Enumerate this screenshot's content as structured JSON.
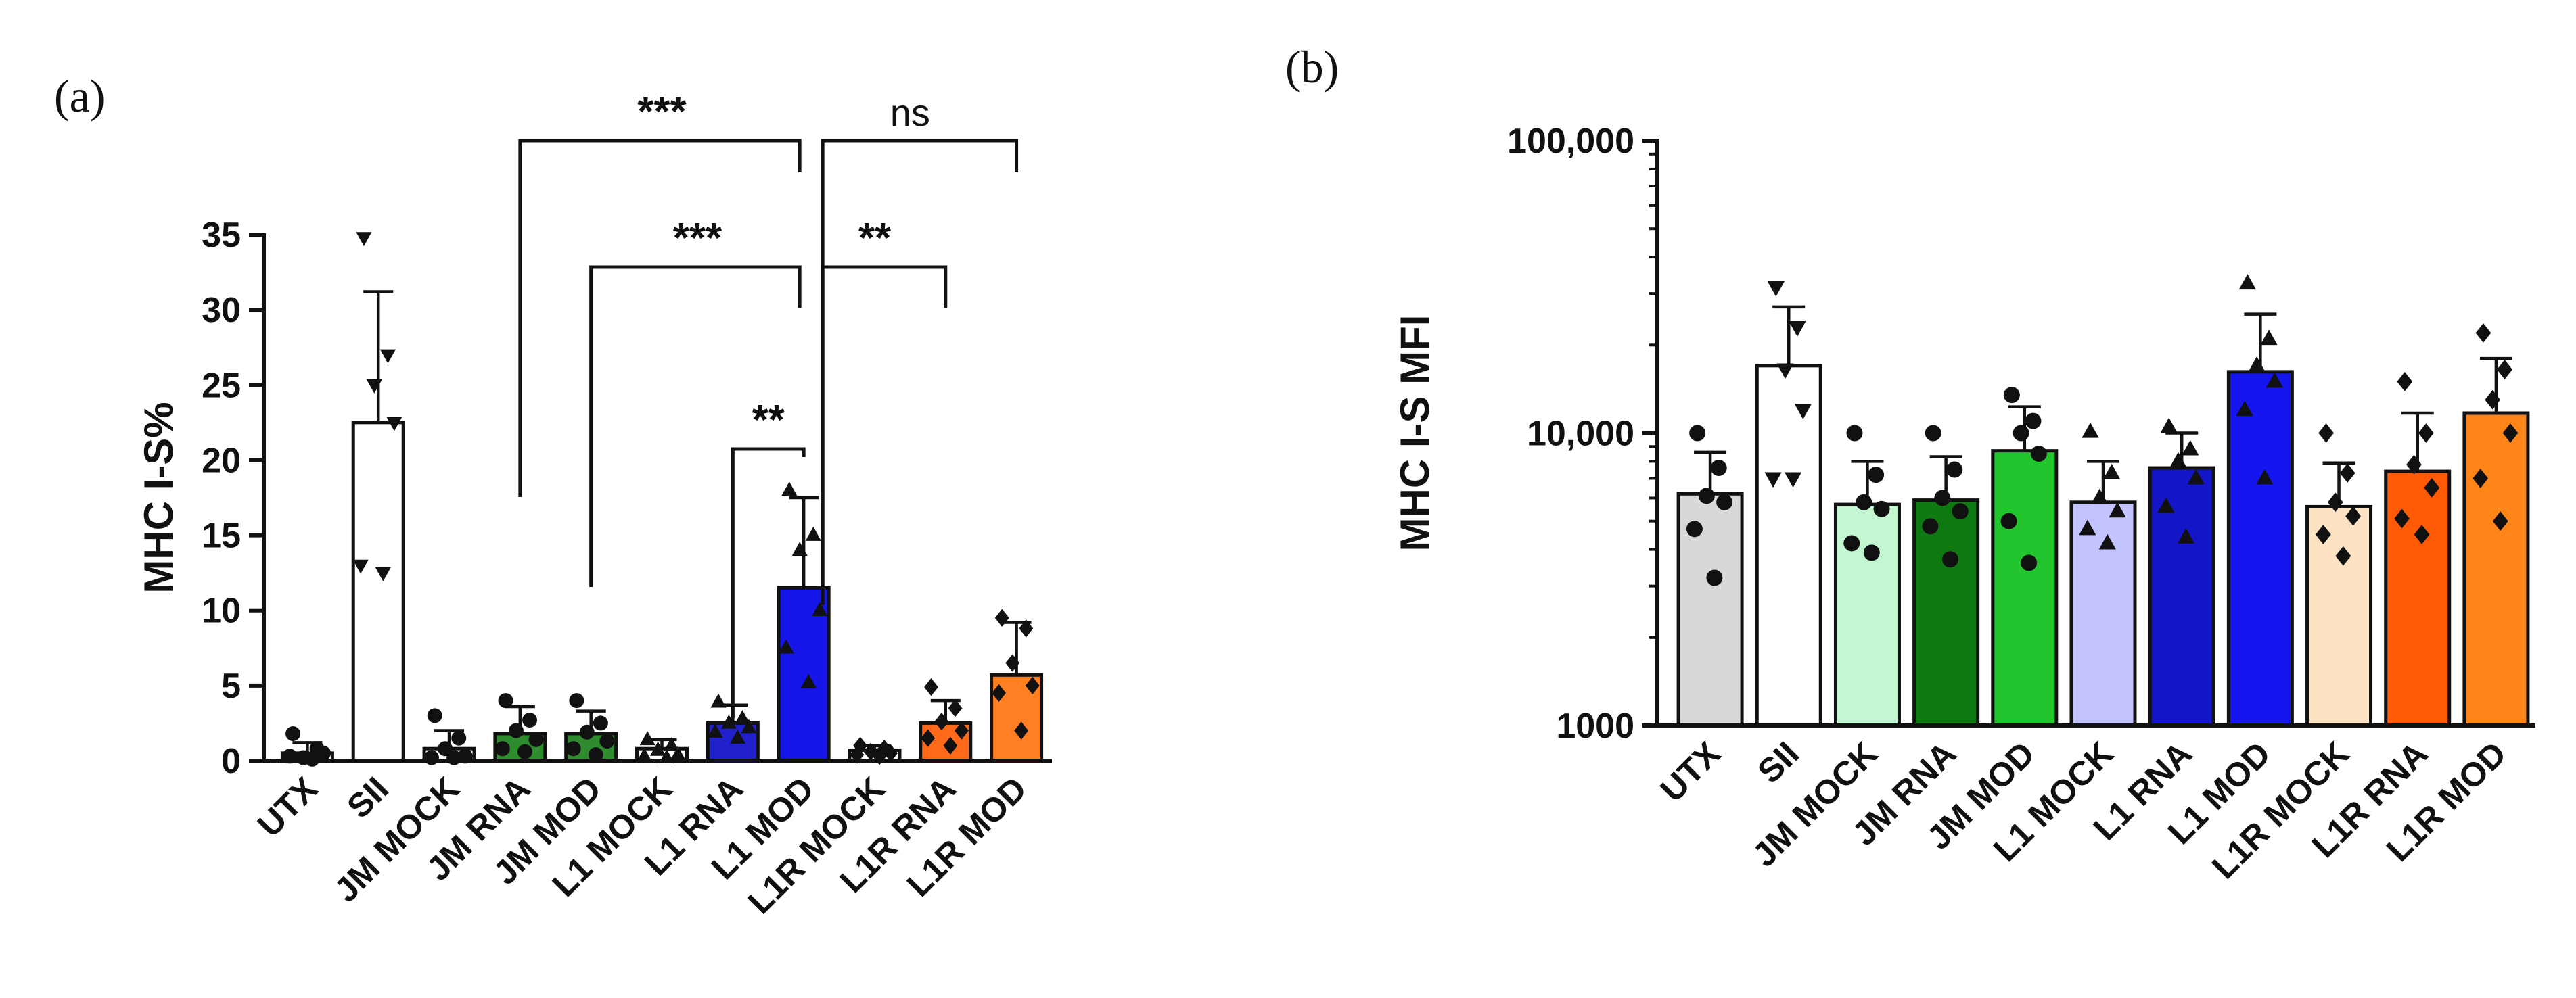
{
  "chart_data": [
    {
      "panel": "(a)",
      "type": "bar",
      "ylabel": "MHC I-S%",
      "scale": "linear",
      "ylim": [
        0,
        35
      ],
      "yticks": [
        0,
        5,
        10,
        15,
        20,
        25,
        30,
        35
      ],
      "ytick_labels": [
        "0",
        "5",
        "10",
        "15",
        "20",
        "25",
        "30",
        "35"
      ],
      "categories": [
        "UTX",
        "SII",
        "JM MOCK",
        "JM RNA",
        "JM MOD",
        "L1 MOCK",
        "L1 RNA",
        "L1 MOD",
        "L1R MOCK",
        "L1R RNA",
        "L1R MOD"
      ],
      "values": [
        0.5,
        22.5,
        0.8,
        1.8,
        1.8,
        0.8,
        2.5,
        11.5,
        0.7,
        2.5,
        5.7
      ],
      "errors": [
        0.7,
        8.7,
        1.2,
        1.8,
        1.5,
        0.6,
        1.2,
        6.0,
        0.3,
        1.5,
        3.5
      ],
      "colors": [
        "#ffffff",
        "#ffffff",
        "#ffffff",
        "#2e8b2e",
        "#2e8b2e",
        "#ffffff",
        "#2020cc",
        "#1515e8",
        "#ffffff",
        "#ff6a1a",
        "#ff7f22"
      ],
      "markers": [
        "circle",
        "triangle-down",
        "circle",
        "circle",
        "circle",
        "triangle",
        "triangle",
        "triangle",
        "diamond",
        "diamond",
        "diamond"
      ],
      "points": [
        [
          1.8,
          0.8,
          0.2,
          0.5,
          0.3,
          0.1
        ],
        [
          34.8,
          27,
          25,
          22.5,
          13,
          12.5
        ],
        [
          3,
          1.5,
          0.8,
          0.3,
          0.2,
          0.2
        ],
        [
          4,
          2.7,
          2.0,
          1.4,
          0.8,
          0.6
        ],
        [
          4,
          2.5,
          1.9,
          1.3,
          0.8,
          0.4
        ],
        [
          1.4,
          1.0,
          0.7,
          0.4,
          0.3,
          0.2
        ],
        [
          3.9,
          2.8,
          2.5,
          2.2,
          1.9,
          1.5
        ],
        [
          18,
          15,
          14,
          10,
          7.5,
          5.2
        ],
        [
          1.0,
          0.8,
          0.6,
          0.5,
          0.4,
          0.3
        ],
        [
          4.9,
          3.5,
          2.6,
          2.0,
          1.5,
          1.0
        ],
        [
          9.5,
          8.8,
          6.5,
          5.0,
          4.5,
          2.0
        ]
      ],
      "significance": [
        {
          "from": "JM RNA",
          "to": "L1 MOD",
          "label": "***"
        },
        {
          "from": "L1 MOD",
          "to": "L1R MOD",
          "label": "ns"
        },
        {
          "from": "JM MOD",
          "to": "L1 MOD",
          "label": "***"
        },
        {
          "from": "L1 MOD",
          "to": "L1R RNA",
          "label": "**"
        },
        {
          "from": "L1 RNA",
          "to": "L1 MOD",
          "label": "**"
        }
      ]
    },
    {
      "panel": "(b)",
      "type": "bar",
      "ylabel": "MHC I-S MFI",
      "scale": "log",
      "ylim": [
        1000,
        100000
      ],
      "yticks": [
        1000,
        10000,
        100000
      ],
      "ytick_labels": [
        "1000",
        "10,000",
        "100,000"
      ],
      "categories": [
        "UTX",
        "SII",
        "JM MOCK",
        "JM RNA",
        "JM MOD",
        "L1 MOCK",
        "L1 RNA",
        "L1 MOD",
        "L1R MOCK",
        "L1R RNA",
        "L1R MOD"
      ],
      "values": [
        6200,
        17000,
        5700,
        5900,
        8700,
        5800,
        7600,
        16200,
        5600,
        7400,
        11700
      ],
      "errors_upper": [
        8600,
        27000,
        8000,
        8300,
        12300,
        8000,
        10000,
        25500,
        7900,
        11700,
        18000
      ],
      "colors": [
        "#d8d8d8",
        "#ffffff",
        "#c2f7d2",
        "#0f7a12",
        "#22c52d",
        "#c3c4ff",
        "#1515c8",
        "#1515ef",
        "#fde2c4",
        "#ff5a05",
        "#ff8519"
      ],
      "markers": [
        "circle",
        "triangle-down",
        "circle",
        "circle",
        "circle",
        "triangle",
        "triangle",
        "triangle",
        "diamond",
        "diamond",
        "diamond"
      ],
      "points": [
        [
          10000,
          7600,
          6100,
          5800,
          4700,
          3200
        ],
        [
          31500,
          23000,
          16500,
          12000,
          7000,
          7000
        ],
        [
          10000,
          7200,
          5800,
          5500,
          4200,
          3900
        ],
        [
          10000,
          7500,
          6000,
          5400,
          4800,
          3700
        ],
        [
          13500,
          11000,
          10000,
          8500,
          5000,
          3600
        ],
        [
          10100,
          7300,
          6000,
          5400,
          4700,
          4200
        ],
        [
          10500,
          8800,
          8000,
          7000,
          5600,
          4400
        ],
        [
          32500,
          21000,
          17000,
          15000,
          12000,
          7000
        ],
        [
          10000,
          7300,
          5800,
          5200,
          4500,
          3800
        ],
        [
          15000,
          10000,
          7800,
          6500,
          5100,
          4500
        ],
        [
          22000,
          16500,
          13000,
          10000,
          7000,
          5000
        ]
      ]
    }
  ]
}
